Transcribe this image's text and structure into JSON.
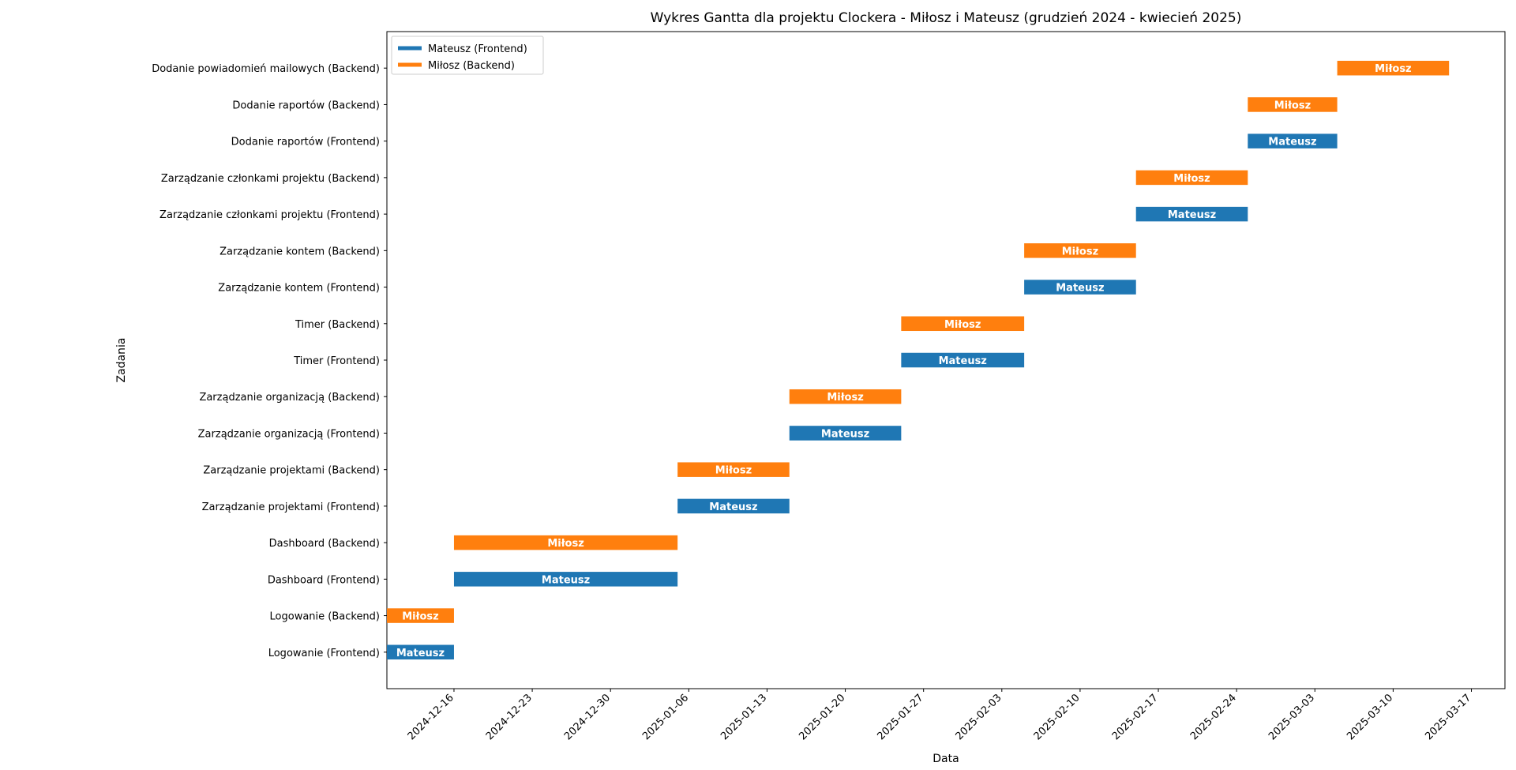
{
  "chart_data": {
    "type": "gantt",
    "title": "Wykres Gantta dla projektu Clockera - Miłosz i Mateusz (grudzień 2024 - kwiecień 2025)",
    "xlabel": "Data",
    "ylabel": "Zadania",
    "xlim": [
      "2024-12-10",
      "2025-03-20"
    ],
    "x_ticks": [
      "2024-12-16",
      "2024-12-23",
      "2024-12-30",
      "2025-01-06",
      "2025-01-13",
      "2025-01-20",
      "2025-01-27",
      "2025-02-03",
      "2025-02-10",
      "2025-02-17",
      "2025-02-24",
      "2025-03-03",
      "2025-03-10",
      "2025-03-17"
    ],
    "x_tick_rotation": 45,
    "grid": false,
    "legend_position": "top-left",
    "series": [
      {
        "name": "Mateusz (Frontend)",
        "color": "#1f77b4",
        "bar_label": "Mateusz"
      },
      {
        "name": "Miłosz (Backend)",
        "color": "#ff7f0e",
        "bar_label": "Miłosz"
      }
    ],
    "tasks": [
      {
        "label": "Logowanie (Frontend)",
        "start": "2024-12-10",
        "end": "2024-12-16",
        "series": 0
      },
      {
        "label": "Logowanie (Backend)",
        "start": "2024-12-10",
        "end": "2024-12-16",
        "series": 1
      },
      {
        "label": "Dashboard (Frontend)",
        "start": "2024-12-16",
        "end": "2025-01-05",
        "series": 0
      },
      {
        "label": "Dashboard (Backend)",
        "start": "2024-12-16",
        "end": "2025-01-05",
        "series": 1
      },
      {
        "label": "Zarządzanie projektami (Frontend)",
        "start": "2025-01-05",
        "end": "2025-01-15",
        "series": 0
      },
      {
        "label": "Zarządzanie projektami (Backend)",
        "start": "2025-01-05",
        "end": "2025-01-15",
        "series": 1
      },
      {
        "label": "Zarządzanie organizacją (Frontend)",
        "start": "2025-01-15",
        "end": "2025-01-25",
        "series": 0
      },
      {
        "label": "Zarządzanie organizacją (Backend)",
        "start": "2025-01-15",
        "end": "2025-01-25",
        "series": 1
      },
      {
        "label": "Timer (Frontend)",
        "start": "2025-01-25",
        "end": "2025-02-05",
        "series": 0
      },
      {
        "label": "Timer (Backend)",
        "start": "2025-01-25",
        "end": "2025-02-05",
        "series": 1
      },
      {
        "label": "Zarządzanie kontem (Frontend)",
        "start": "2025-02-05",
        "end": "2025-02-15",
        "series": 0
      },
      {
        "label": "Zarządzanie kontem (Backend)",
        "start": "2025-02-05",
        "end": "2025-02-15",
        "series": 1
      },
      {
        "label": "Zarządzanie członkami projektu (Frontend)",
        "start": "2025-02-15",
        "end": "2025-02-25",
        "series": 0
      },
      {
        "label": "Zarządzanie członkami projektu (Backend)",
        "start": "2025-02-15",
        "end": "2025-02-25",
        "series": 1
      },
      {
        "label": "Dodanie raportów (Frontend)",
        "start": "2025-02-25",
        "end": "2025-03-05",
        "series": 0
      },
      {
        "label": "Dodanie raportów (Backend)",
        "start": "2025-02-25",
        "end": "2025-03-05",
        "series": 1
      },
      {
        "label": "Dodanie powiadomień mailowych (Backend)",
        "start": "2025-03-05",
        "end": "2025-03-15",
        "series": 1
      }
    ]
  }
}
